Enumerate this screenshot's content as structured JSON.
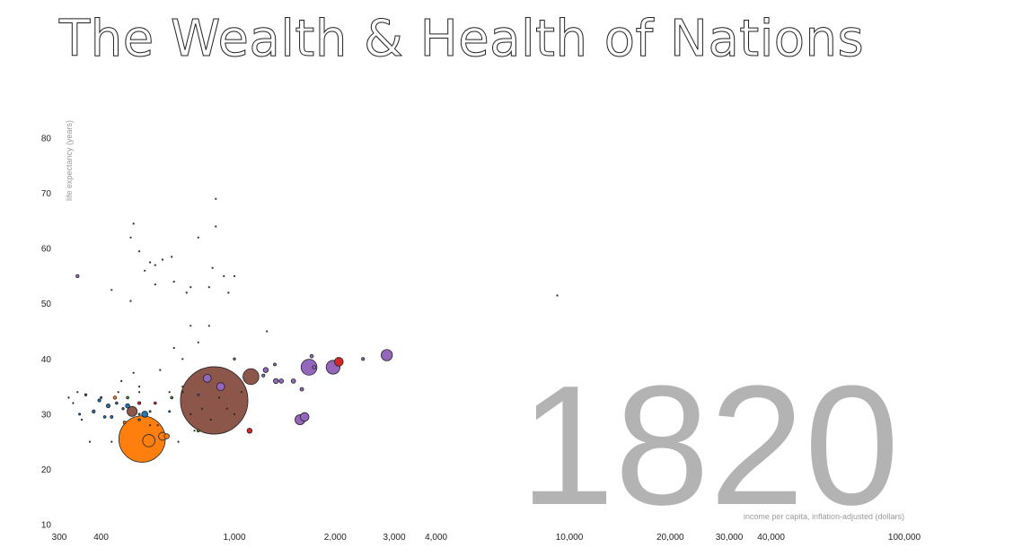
{
  "title": "The Wealth & Health of Nations",
  "chart_data": {
    "type": "scatter",
    "title": "The Wealth & Health of Nations",
    "year": "1820",
    "xlabel": "income per capita, inflation-adjusted (dollars)",
    "ylabel": "life expectancy (years)",
    "xscale": "log",
    "xlim": [
      300,
      100000
    ],
    "ylim": [
      10,
      85
    ],
    "x_ticks": [
      {
        "value": 300,
        "label": "300"
      },
      {
        "value": 400,
        "label": "400"
      },
      {
        "value": 1000,
        "label": "1,000"
      },
      {
        "value": 2000,
        "label": "2,000"
      },
      {
        "value": 3000,
        "label": "3,000"
      },
      {
        "value": 4000,
        "label": "4,000"
      },
      {
        "value": 10000,
        "label": "10,000"
      },
      {
        "value": 20000,
        "label": "20,000"
      },
      {
        "value": 30000,
        "label": "30,000"
      },
      {
        "value": 40000,
        "label": "40,000"
      },
      {
        "value": 100000,
        "label": "100,000"
      }
    ],
    "y_ticks": [
      {
        "value": 10,
        "label": "10"
      },
      {
        "value": 20,
        "label": "20"
      },
      {
        "value": 30,
        "label": "30"
      },
      {
        "value": 40,
        "label": "40"
      },
      {
        "value": 50,
        "label": "50"
      },
      {
        "value": 60,
        "label": "60"
      },
      {
        "value": 70,
        "label": "70"
      },
      {
        "value": 80,
        "label": "80"
      }
    ],
    "grid": false,
    "size_encoding": "population",
    "color_encoding": "region",
    "region_colors": {
      "East Asia & Pacific": "#8c564b",
      "South Asia": "#ff7f0e",
      "Europe & Central Asia": "#9467bd",
      "Sub-Saharan Africa": "#1f77b4",
      "America": "#d62728",
      "Middle East & North Africa": "#2ca02c"
    },
    "points": [
      {
        "region": "East Asia & Pacific",
        "income": 870,
        "life": 32.5,
        "population": 360000000
      },
      {
        "region": "South Asia",
        "income": 530,
        "life": 25.5,
        "population": 170000000
      },
      {
        "region": "South Asia",
        "income": 555,
        "life": 25.2,
        "population": 12000000
      },
      {
        "region": "South Asia",
        "income": 610,
        "life": 26,
        "population": 5000000
      },
      {
        "region": "South Asia",
        "income": 628,
        "life": 26,
        "population": 2000000
      },
      {
        "region": "South Asia",
        "income": 440,
        "life": 33,
        "population": 800000
      },
      {
        "region": "South Asia",
        "income": 470,
        "life": 28.5,
        "population": 600000
      },
      {
        "region": "East Asia & Pacific",
        "income": 1120,
        "life": 36.8,
        "population": 20000000
      },
      {
        "region": "East Asia & Pacific",
        "income": 495,
        "life": 30.5,
        "population": 8000000
      },
      {
        "region": "Europe & Central Asia",
        "income": 1670,
        "life": 38.5,
        "population": 20000000
      },
      {
        "region": "Europe & Central Asia",
        "income": 1970,
        "life": 38.5,
        "population": 15000000
      },
      {
        "region": "America",
        "income": 2050,
        "life": 39.5,
        "population": 6000000
      },
      {
        "region": "Europe & Central Asia",
        "income": 2850,
        "life": 40.7,
        "population": 10000000
      },
      {
        "region": "Europe & Central Asia",
        "income": 1620,
        "life": 29.5,
        "population": 6000000
      },
      {
        "region": "Europe & Central Asia",
        "income": 1570,
        "life": 29,
        "population": 8000000
      },
      {
        "region": "Europe & Central Asia",
        "income": 910,
        "life": 35,
        "population": 5000000
      },
      {
        "region": "Europe & Central Asia",
        "income": 830,
        "life": 36.5,
        "population": 5000000
      },
      {
        "region": "Europe & Central Asia",
        "income": 1240,
        "life": 38,
        "population": 2000000
      },
      {
        "region": "Europe & Central Asia",
        "income": 1330,
        "life": 36,
        "population": 2000000
      },
      {
        "region": "Europe & Central Asia",
        "income": 1380,
        "life": 36,
        "population": 1500000
      },
      {
        "region": "Europe & Central Asia",
        "income": 1500,
        "life": 36,
        "population": 1500000
      },
      {
        "region": "Europe & Central Asia",
        "income": 1590,
        "life": 34.5,
        "population": 1000000
      },
      {
        "region": "Europe & Central Asia",
        "income": 1700,
        "life": 40.5,
        "population": 900000
      },
      {
        "region": "Europe & Central Asia",
        "income": 1730,
        "life": 38.5,
        "population": 900000
      },
      {
        "region": "Europe & Central Asia",
        "income": 2420,
        "life": 40,
        "population": 700000
      },
      {
        "region": "Europe & Central Asia",
        "income": 1320,
        "life": 39,
        "population": 600000
      },
      {
        "region": "Europe & Central Asia",
        "income": 1220,
        "life": 37,
        "population": 700000
      },
      {
        "region": "Europe & Central Asia",
        "income": 1000,
        "life": 40,
        "population": 400000
      },
      {
        "region": "Europe & Central Asia",
        "income": 340,
        "life": 55,
        "population": 800000
      },
      {
        "region": "America",
        "income": 1110,
        "life": 27,
        "population": 2000000
      },
      {
        "region": "America",
        "income": 520,
        "life": 32,
        "population": 700000
      },
      {
        "region": "America",
        "income": 580,
        "life": 32,
        "population": 500000
      },
      {
        "region": "Sub-Saharan Africa",
        "income": 540,
        "life": 30,
        "population": 3000000
      },
      {
        "region": "Sub-Saharan Africa",
        "income": 480,
        "life": 31.5,
        "population": 1500000
      },
      {
        "region": "Sub-Saharan Africa",
        "income": 420,
        "life": 31.5,
        "population": 1200000
      },
      {
        "region": "Sub-Saharan Africa",
        "income": 380,
        "life": 30.5,
        "population": 800000
      },
      {
        "region": "Sub-Saharan Africa",
        "income": 395,
        "life": 32.5,
        "population": 700000
      },
      {
        "region": "Sub-Saharan Africa",
        "income": 430,
        "life": 29.5,
        "population": 600000
      },
      {
        "region": "Sub-Saharan Africa",
        "income": 410,
        "life": 29.5,
        "population": 500000
      },
      {
        "region": "Sub-Saharan Africa",
        "income": 360,
        "life": 33.5,
        "population": 400000
      },
      {
        "region": "Sub-Saharan Africa",
        "income": 445,
        "life": 32,
        "population": 500000
      },
      {
        "region": "Sub-Saharan Africa",
        "income": 465,
        "life": 31,
        "population": 400000
      },
      {
        "region": "Sub-Saharan Africa",
        "income": 520,
        "life": 29,
        "population": 400000
      },
      {
        "region": "Sub-Saharan Africa",
        "income": 560,
        "life": 30.5,
        "population": 300000
      },
      {
        "region": "Sub-Saharan Africa",
        "income": 640,
        "life": 30.5,
        "population": 300000
      },
      {
        "region": "Sub-Saharan Africa",
        "income": 780,
        "life": 33.5,
        "population": 300000
      },
      {
        "region": "Sub-Saharan Africa",
        "income": 345,
        "life": 30,
        "population": 300000
      },
      {
        "region": "Sub-Saharan Africa",
        "income": 400,
        "life": 33,
        "population": 300000
      },
      {
        "region": "Middle East & North Africa",
        "income": 480,
        "life": 33,
        "population": 500000
      },
      {
        "region": "Middle East & North Africa",
        "income": 650,
        "life": 33,
        "population": 500000
      },
      {
        "region": "Middle East & North Africa",
        "income": 780,
        "life": 27,
        "population": 500000
      },
      {
        "region": "Middle East & North Africa",
        "income": 520,
        "life": 30,
        "population": 300000
      },
      {
        "region": "Middle East & North Africa",
        "income": 700,
        "life": 34,
        "population": 200000
      },
      {
        "region": "East Asia & Pacific",
        "income": 370,
        "life": 25,
        "population": 100000
      },
      {
        "region": "East Asia & Pacific",
        "income": 430,
        "life": 25,
        "population": 100000
      },
      {
        "region": "East Asia & Pacific",
        "income": 560,
        "life": 28,
        "population": 100000
      },
      {
        "region": "East Asia & Pacific",
        "income": 600,
        "life": 38,
        "population": 100000
      },
      {
        "region": "East Asia & Pacific",
        "income": 700,
        "life": 35,
        "population": 100000
      },
      {
        "region": "East Asia & Pacific",
        "income": 740,
        "life": 30,
        "population": 100000
      },
      {
        "region": "East Asia & Pacific",
        "income": 800,
        "life": 31,
        "population": 100000
      },
      {
        "region": "East Asia & Pacific",
        "income": 850,
        "life": 29,
        "population": 100000
      },
      {
        "region": "East Asia & Pacific",
        "income": 900,
        "life": 33,
        "population": 100000
      },
      {
        "region": "East Asia & Pacific",
        "income": 950,
        "life": 31,
        "population": 100000
      },
      {
        "region": "East Asia & Pacific",
        "income": 640,
        "life": 34,
        "population": 100000
      },
      {
        "region": "East Asia & Pacific",
        "income": 330,
        "life": 32,
        "population": 100000
      },
      {
        "region": "East Asia & Pacific",
        "income": 350,
        "life": 29,
        "population": 100000
      },
      {
        "region": "East Asia & Pacific",
        "income": 450,
        "life": 34,
        "population": 100000
      },
      {
        "region": "East Asia & Pacific",
        "income": 520,
        "life": 35,
        "population": 100000
      },
      {
        "region": "East Asia & Pacific",
        "income": 680,
        "life": 25,
        "population": 100000
      },
      {
        "region": "East Asia & Pacific",
        "income": 1050,
        "life": 34,
        "population": 100000
      },
      {
        "region": "East Asia & Pacific",
        "income": 500,
        "life": 37.5,
        "population": 30000
      },
      {
        "region": "East Asia & Pacific",
        "income": 590,
        "life": 28,
        "population": 30000
      },
      {
        "region": "East Asia & Pacific",
        "income": 760,
        "life": 27,
        "population": 30000
      },
      {
        "region": "East Asia & Pacific",
        "income": 1000,
        "life": 30,
        "population": 30000
      },
      {
        "region": "East Asia & Pacific",
        "income": 340,
        "life": 34,
        "population": 30000
      },
      {
        "region": "Europe & Central Asia",
        "income": 500,
        "life": 64.5,
        "population": 100000
      },
      {
        "region": "Europe & Central Asia",
        "income": 880,
        "life": 64,
        "population": 100000
      },
      {
        "region": "Europe & Central Asia",
        "income": 490,
        "life": 62,
        "population": 100000
      },
      {
        "region": "Europe & Central Asia",
        "income": 520,
        "life": 59.5,
        "population": 100000
      },
      {
        "region": "Europe & Central Asia",
        "income": 560,
        "life": 57.5,
        "population": 100000
      },
      {
        "region": "Europe & Central Asia",
        "income": 580,
        "life": 57,
        "population": 100000
      },
      {
        "region": "Europe & Central Asia",
        "income": 610,
        "life": 58,
        "population": 30000
      },
      {
        "region": "Europe & Central Asia",
        "income": 430,
        "life": 52.5,
        "population": 100000
      },
      {
        "region": "Europe & Central Asia",
        "income": 490,
        "life": 50.5,
        "population": 100000
      },
      {
        "region": "Europe & Central Asia",
        "income": 740,
        "life": 53,
        "population": 100000
      },
      {
        "region": "Europe & Central Asia",
        "income": 660,
        "life": 54,
        "population": 30000
      },
      {
        "region": "Europe & Central Asia",
        "income": 720,
        "life": 52,
        "population": 30000
      },
      {
        "region": "Europe & Central Asia",
        "income": 840,
        "life": 53,
        "population": 30000
      },
      {
        "region": "Europe & Central Asia",
        "income": 860,
        "life": 56.5,
        "population": 30000
      },
      {
        "region": "Europe & Central Asia",
        "income": 930,
        "life": 55,
        "population": 30000
      },
      {
        "region": "Europe & Central Asia",
        "income": 960,
        "life": 52,
        "population": 30000
      },
      {
        "region": "Europe & Central Asia",
        "income": 1000,
        "life": 55,
        "population": 30000
      },
      {
        "region": "Europe & Central Asia",
        "income": 880,
        "life": 69,
        "population": 30000
      },
      {
        "region": "Europe & Central Asia",
        "income": 780,
        "life": 62,
        "population": 30000
      },
      {
        "region": "Europe & Central Asia",
        "income": 540,
        "life": 56,
        "population": 30000
      },
      {
        "region": "Europe & Central Asia",
        "income": 580,
        "life": 53.5,
        "population": 30000
      },
      {
        "region": "Europe & Central Asia",
        "income": 650,
        "life": 58.5,
        "population": 30000
      },
      {
        "region": "Europe & Central Asia",
        "income": 740,
        "life": 46,
        "population": 30000
      },
      {
        "region": "Europe & Central Asia",
        "income": 840,
        "life": 46,
        "population": 30000
      },
      {
        "region": "Europe & Central Asia",
        "income": 780,
        "life": 43,
        "population": 30000
      },
      {
        "region": "Europe & Central Asia",
        "income": 1250,
        "life": 45,
        "population": 30000
      },
      {
        "region": "Europe & Central Asia",
        "income": 660,
        "life": 42,
        "population": 30000
      },
      {
        "region": "America",
        "income": 9200,
        "life": 51.5,
        "population": 30000
      },
      {
        "region": "America",
        "income": 700,
        "life": 40,
        "population": 30000
      },
      {
        "region": "Sub-Saharan Africa",
        "income": 320,
        "life": 33,
        "population": 30000
      },
      {
        "region": "Sub-Saharan Africa",
        "income": 460,
        "life": 36,
        "population": 30000
      },
      {
        "region": "Sub-Saharan Africa",
        "income": 520,
        "life": 34,
        "population": 30000
      }
    ]
  }
}
